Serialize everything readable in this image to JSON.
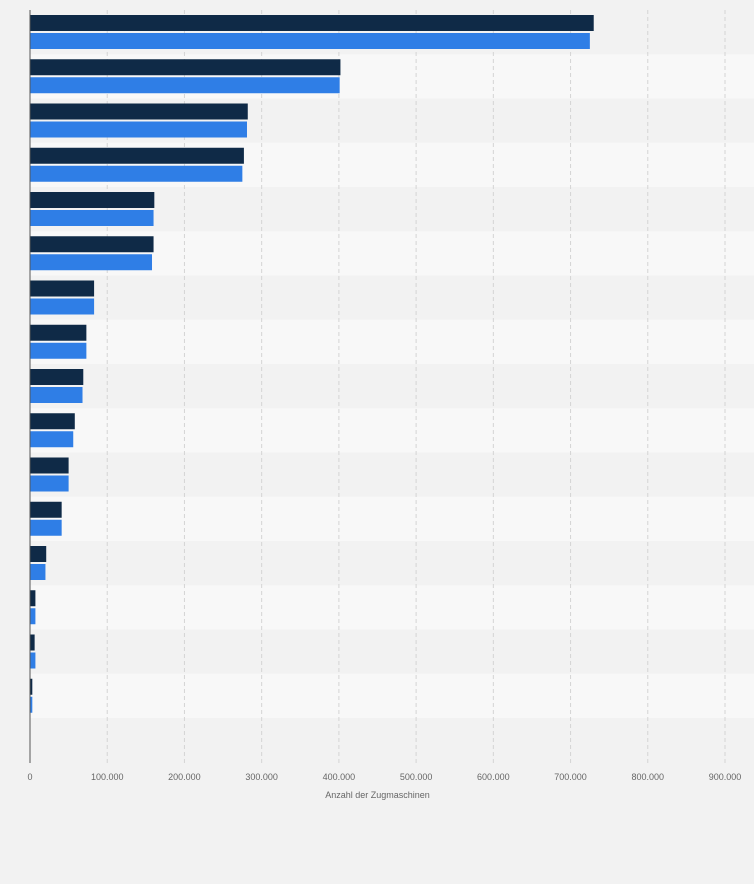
{
  "chart_data": {
    "type": "bar",
    "orientation": "horizontal",
    "categories": [
      "",
      "",
      "",
      "",
      "",
      "",
      "",
      "",
      "",
      "",
      "",
      "",
      "",
      "",
      "",
      ""
    ],
    "series": [
      {
        "name": "",
        "color": "#0f2a47",
        "values": [
          730000,
          402000,
          282000,
          277000,
          161000,
          160000,
          83000,
          73000,
          69000,
          58000,
          50000,
          41000,
          21000,
          7000,
          6000,
          3000
        ]
      },
      {
        "name": "",
        "color": "#2f7ee6",
        "values": [
          725000,
          401000,
          281000,
          275000,
          160000,
          158000,
          83000,
          73000,
          68000,
          56000,
          50000,
          41000,
          20000,
          7000,
          7000,
          3000
        ]
      }
    ],
    "xlim": [
      0,
      900000
    ],
    "xticks": [
      0,
      100000,
      200000,
      300000,
      400000,
      500000,
      600000,
      700000,
      800000,
      900000
    ],
    "xtick_labels": [
      "0",
      "100.000",
      "200.000",
      "300.000",
      "400.000",
      "500.000",
      "600.000",
      "700.000",
      "800.000",
      "900.000"
    ],
    "xlabel": "Anzahl der Zugmaschinen",
    "ylabel": "",
    "title": "",
    "grid": true,
    "legend": "none"
  }
}
